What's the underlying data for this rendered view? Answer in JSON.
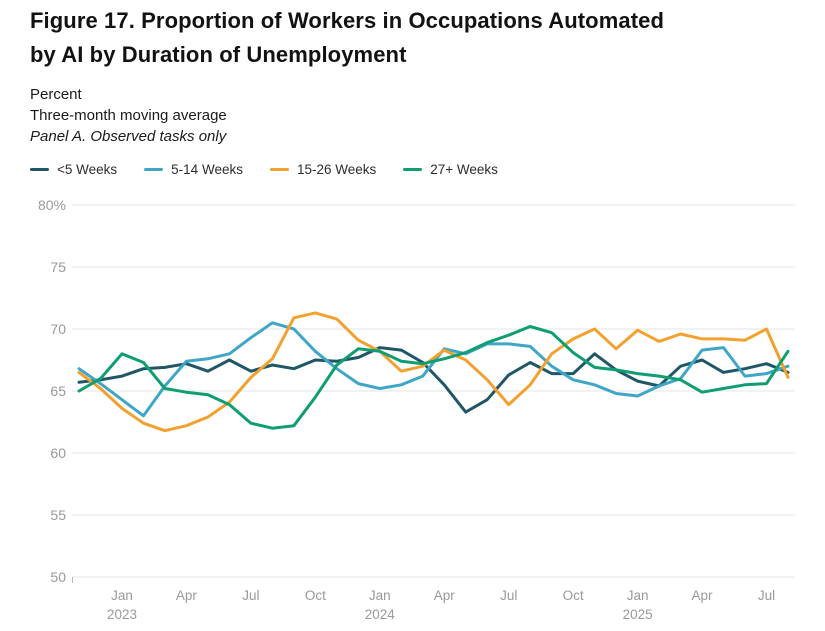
{
  "header": {
    "title_line1": "Figure 17. Proportion of Workers in Occupations Automated",
    "title_line2": "by AI by Duration of Unemployment",
    "subtitle1": "Percent",
    "subtitle2": "Three-month moving average",
    "panel_label": "Panel A. Observed tasks only"
  },
  "colors": {
    "under5": "#1f5766",
    "w5_14": "#3fa6c8",
    "w15_26": "#f2a12f",
    "w27plus": "#0f9d72",
    "gridline": "#e4e4e4",
    "axis_text": "#999999",
    "tick_mark": "#bbbbbb"
  },
  "chart_data": {
    "type": "line",
    "title": "Proportion of Workers in Occupations Automated by AI by Duration of Unemployment",
    "subtitle": "Three-month moving average, Panel A. Observed tasks only",
    "ylabel": "Percent",
    "ylim": [
      50,
      80
    ],
    "grid": "horizontal-only",
    "legend_position": "top-left",
    "x": [
      "Nov 2022",
      "Dec 2022",
      "Jan 2023",
      "Feb 2023",
      "Mar 2023",
      "Apr 2023",
      "May 2023",
      "Jun 2023",
      "Jul 2023",
      "Aug 2023",
      "Sep 2023",
      "Oct 2023",
      "Nov 2023",
      "Dec 2023",
      "Jan 2024",
      "Feb 2024",
      "Mar 2024",
      "Apr 2024",
      "May 2024",
      "Jun 2024",
      "Jul 2024",
      "Aug 2024",
      "Sep 2024",
      "Oct 2024",
      "Nov 2024",
      "Dec 2024",
      "Jan 2025",
      "Feb 2025",
      "Mar 2025",
      "Apr 2025",
      "May 2025",
      "Jun 2025",
      "Jul 2025",
      "Aug 2025"
    ],
    "y_ticks": [
      {
        "value": 80,
        "label": "80%"
      },
      {
        "value": 75,
        "label": "75"
      },
      {
        "value": 70,
        "label": "70"
      },
      {
        "value": 65,
        "label": "65"
      },
      {
        "value": 60,
        "label": "60"
      },
      {
        "value": 55,
        "label": "55"
      },
      {
        "value": 50,
        "label": "50"
      }
    ],
    "x_ticks": [
      {
        "i": 2,
        "label": "Jan",
        "year": "2023"
      },
      {
        "i": 5,
        "label": "Apr"
      },
      {
        "i": 8,
        "label": "Jul"
      },
      {
        "i": 11,
        "label": "Oct"
      },
      {
        "i": 14,
        "label": "Jan",
        "year": "2024"
      },
      {
        "i": 17,
        "label": "Apr"
      },
      {
        "i": 20,
        "label": "Jul"
      },
      {
        "i": 23,
        "label": "Oct"
      },
      {
        "i": 26,
        "label": "Jan",
        "year": "2025"
      },
      {
        "i": 29,
        "label": "Apr"
      },
      {
        "i": 32,
        "label": "Jul"
      }
    ],
    "series": [
      {
        "name": "<5 Weeks",
        "color_key": "under5",
        "values": [
          65.7,
          65.9,
          66.2,
          66.8,
          66.9,
          67.2,
          66.6,
          67.5,
          66.6,
          67.1,
          66.8,
          67.5,
          67.4,
          67.7,
          68.5,
          68.3,
          67.3,
          65.5,
          63.3,
          64.3,
          66.3,
          67.3,
          66.4,
          66.4,
          68.0,
          66.7,
          65.8,
          65.4,
          67.0,
          67.5,
          66.5,
          66.8,
          67.2,
          66.5
        ]
      },
      {
        "name": "5-14 Weeks",
        "color_key": "w5_14",
        "values": [
          66.8,
          65.6,
          64.3,
          63.0,
          65.4,
          67.4,
          67.6,
          68.0,
          69.3,
          70.5,
          70.0,
          68.2,
          66.8,
          65.6,
          65.2,
          65.5,
          66.2,
          68.4,
          68.0,
          68.8,
          68.8,
          68.6,
          67.0,
          65.9,
          65.5,
          64.8,
          64.6,
          65.4,
          66.0,
          68.3,
          68.5,
          66.2,
          66.4,
          67.0
        ]
      },
      {
        "name": "15-26 Weeks",
        "color_key": "w15_26",
        "values": [
          66.5,
          65.2,
          63.6,
          62.4,
          61.8,
          62.2,
          62.9,
          64.1,
          66.1,
          67.6,
          70.9,
          71.3,
          70.8,
          69.1,
          68.2,
          66.6,
          67.0,
          68.3,
          67.5,
          65.9,
          63.9,
          65.5,
          68.0,
          69.2,
          70.0,
          68.4,
          69.9,
          69.0,
          69.6,
          69.2,
          69.2,
          69.1,
          70.0,
          66.1
        ]
      },
      {
        "name": "27+ Weeks",
        "color_key": "w27plus",
        "values": [
          65.0,
          66.0,
          68.0,
          67.3,
          65.2,
          64.9,
          64.7,
          63.9,
          62.4,
          62.0,
          62.2,
          64.5,
          67.1,
          68.4,
          68.2,
          67.4,
          67.2,
          67.6,
          68.1,
          68.9,
          69.5,
          70.2,
          69.7,
          68.1,
          66.9,
          66.7,
          66.4,
          66.2,
          65.9,
          64.9,
          65.2,
          65.5,
          65.6,
          68.2
        ]
      }
    ]
  }
}
